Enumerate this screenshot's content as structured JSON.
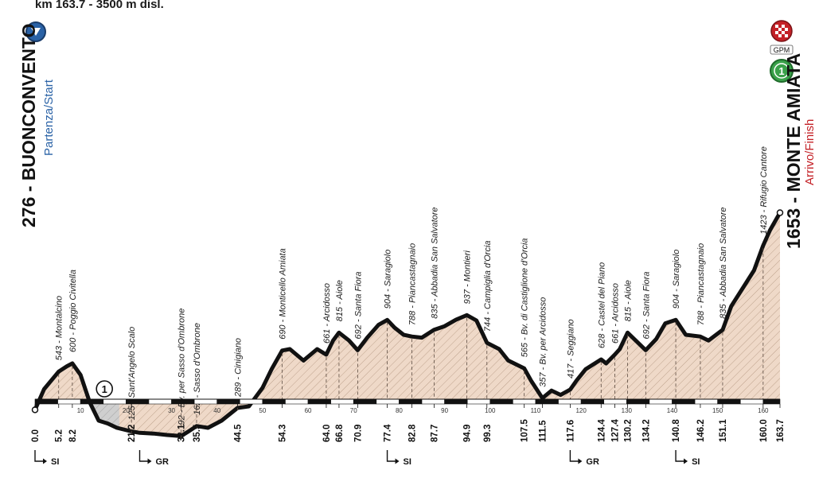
{
  "header": {
    "summary": "km 163.7 - 3500 m disl."
  },
  "start": {
    "name": "276 - BUONCONVENTO",
    "sub": "Partenza/Start"
  },
  "finish": {
    "name": "1653 - MONTE AMIATA",
    "sub": "Arrivo/Finish",
    "gpm_badge": "GPM",
    "gpm_number": "1"
  },
  "colors": {
    "profile_fill": "#efd9c8",
    "profile_stroke": "#111111",
    "start_blue": "#2a62a6",
    "finish_red": "#c42127",
    "gpm_green": "#3aa14a",
    "sprint_grey": "#cfcfcf"
  },
  "chart_data": {
    "type": "area",
    "title": "",
    "xlabel": "",
    "ylabel": "",
    "xlim": [
      0,
      163.7
    ],
    "ylim": [
      0,
      1700
    ],
    "x_ticks": [
      10,
      20,
      30,
      40,
      50,
      60,
      70,
      80,
      90,
      100,
      110,
      120,
      130,
      140,
      150,
      160
    ],
    "profile": [
      [
        0,
        276
      ],
      [
        2,
        420
      ],
      [
        5.2,
        543
      ],
      [
        7,
        580
      ],
      [
        8.2,
        600
      ],
      [
        10,
        520
      ],
      [
        12,
        330
      ],
      [
        14,
        200
      ],
      [
        16,
        180
      ],
      [
        18,
        150
      ],
      [
        21.2,
        125
      ],
      [
        23,
        115
      ],
      [
        26,
        110
      ],
      [
        29,
        100
      ],
      [
        32.1,
        92
      ],
      [
        33.5,
        120
      ],
      [
        35.5,
        162
      ],
      [
        38,
        150
      ],
      [
        41,
        200
      ],
      [
        44.5,
        289
      ],
      [
        47,
        300
      ],
      [
        50,
        430
      ],
      [
        52,
        560
      ],
      [
        54.3,
        690
      ],
      [
        56,
        700
      ],
      [
        59,
        620
      ],
      [
        62,
        700
      ],
      [
        64,
        661
      ],
      [
        65.5,
        760
      ],
      [
        66.8,
        815
      ],
      [
        69,
        760
      ],
      [
        70.9,
        692
      ],
      [
        73,
        780
      ],
      [
        75.5,
        870
      ],
      [
        77.4,
        904
      ],
      [
        79,
        850
      ],
      [
        81,
        800
      ],
      [
        82.8,
        788
      ],
      [
        85,
        780
      ],
      [
        87.7,
        835
      ],
      [
        90,
        860
      ],
      [
        92.5,
        905
      ],
      [
        94.9,
        937
      ],
      [
        97,
        900
      ],
      [
        99.3,
        744
      ],
      [
        102,
        700
      ],
      [
        104,
        620
      ],
      [
        107.5,
        565
      ],
      [
        109,
        480
      ],
      [
        111.5,
        357
      ],
      [
        113.5,
        410
      ],
      [
        115.5,
        380
      ],
      [
        117.6,
        417
      ],
      [
        119,
        480
      ],
      [
        121,
        560
      ],
      [
        124.4,
        628
      ],
      [
        125.5,
        600
      ],
      [
        127.4,
        661
      ],
      [
        128.5,
        700
      ],
      [
        130.2,
        815
      ],
      [
        132,
        760
      ],
      [
        134.2,
        692
      ],
      [
        136.5,
        770
      ],
      [
        138.5,
        880
      ],
      [
        140.8,
        904
      ],
      [
        143,
        800
      ],
      [
        146.2,
        788
      ],
      [
        148,
        760
      ],
      [
        151.1,
        835
      ],
      [
        153,
        1000
      ],
      [
        156,
        1150
      ],
      [
        158,
        1250
      ],
      [
        160,
        1423
      ],
      [
        161.5,
        1530
      ],
      [
        163.7,
        1653
      ]
    ],
    "localities": [
      {
        "km": 5.2,
        "label": "543 - Montalcino"
      },
      {
        "km": 8.2,
        "label": "600 - Poggio Civitella"
      },
      {
        "km": 21.2,
        "label": "125 - Sant'Angelo Scalo"
      },
      {
        "km": 32.1,
        "label": "92 - Bv. per Sasso d'Ombrone"
      },
      {
        "km": 35.5,
        "label": "162 - Sasso d'Ombrone"
      },
      {
        "km": 44.5,
        "label": "289 - Cinigiano"
      },
      {
        "km": 54.3,
        "label": "690 - Monticello Amiata"
      },
      {
        "km": 64.0,
        "label": "661 - Arcidosso"
      },
      {
        "km": 66.8,
        "label": "815 - Aiole"
      },
      {
        "km": 70.9,
        "label": "692 - Santa Fiora"
      },
      {
        "km": 77.4,
        "label": "904 - Saragiolo"
      },
      {
        "km": 82.8,
        "label": "788 - Piancastagnaio"
      },
      {
        "km": 87.7,
        "label": "835 - Abbadia San Salvatore"
      },
      {
        "km": 94.9,
        "label": "937 - Montieri"
      },
      {
        "km": 99.3,
        "label": "744 - Campiglia d'Orcia"
      },
      {
        "km": 107.5,
        "label": "565 - Bv. di Castiglione d'Orcia"
      },
      {
        "km": 111.5,
        "label": "357 - Bv. per Arcidosso"
      },
      {
        "km": 117.6,
        "label": "417 - Seggiano"
      },
      {
        "km": 124.4,
        "label": "628 - Castel del Piano"
      },
      {
        "km": 127.4,
        "label": "661 - Arcidosso"
      },
      {
        "km": 130.2,
        "label": "815 - Aiole"
      },
      {
        "km": 134.2,
        "label": "692 - Santa Fiora"
      },
      {
        "km": 140.8,
        "label": "904 - Saragiolo"
      },
      {
        "km": 146.2,
        "label": "788 - Piancastagnaio"
      },
      {
        "km": 151.1,
        "label": "835 - Abbadia San Salvatore"
      },
      {
        "km": 160.0,
        "label": "1423 - Rifugio Cantore"
      }
    ],
    "km_labels": [
      "0.0",
      "5.2",
      "8.2",
      "21.2",
      "32.1",
      "35.5",
      "44.5",
      "54.3",
      "64.0",
      "66.8",
      "70.9",
      "77.4",
      "82.8",
      "87.7",
      "94.9",
      "99.3",
      "107.5",
      "111.5",
      "117.6",
      "124.4",
      "127.4",
      "130.2",
      "134.2",
      "140.8",
      "146.2",
      "151.1",
      "160.0",
      "163.7"
    ],
    "directions": [
      {
        "km": 0,
        "label": "SI"
      },
      {
        "km": 23,
        "label": "GR"
      },
      {
        "km": 77.4,
        "label": "SI"
      },
      {
        "km": 117.6,
        "label": "GR"
      },
      {
        "km": 140.8,
        "label": "SI"
      }
    ],
    "sprint": {
      "km_from": 12,
      "km_to": 18.5,
      "label": "1"
    }
  }
}
